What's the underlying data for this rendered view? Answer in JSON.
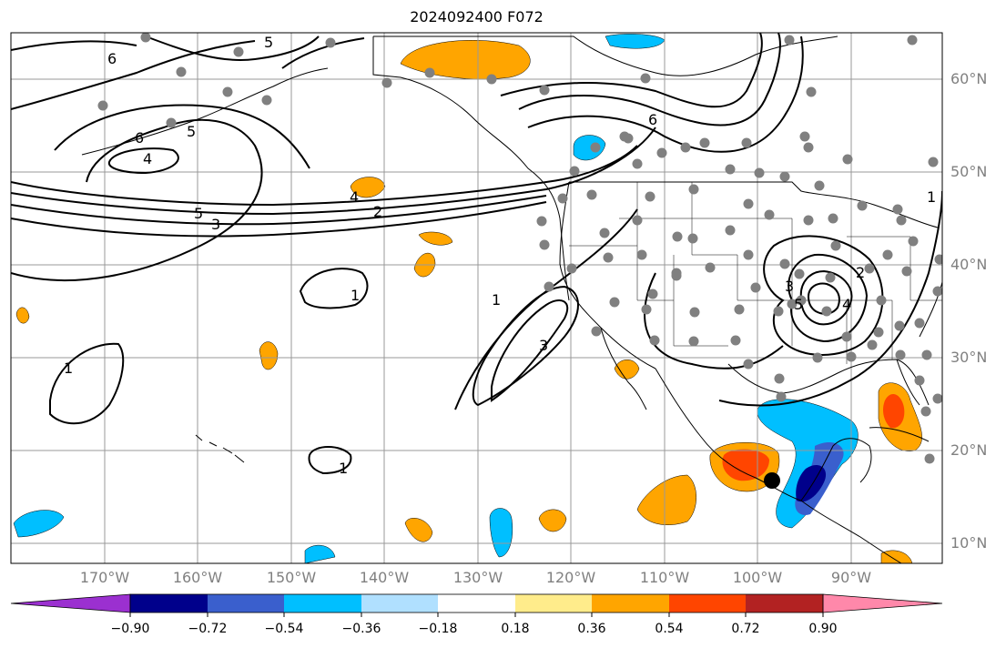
{
  "title": "2024092400 F072",
  "longitude_labels": [
    "170°W",
    "160°W",
    "150°W",
    "140°W",
    "130°W",
    "120°W",
    "110°W",
    "100°W",
    "90°W"
  ],
  "latitude_labels": [
    "60°N",
    "50°N",
    "40°N",
    "30°N",
    "20°N",
    "10°N"
  ],
  "contour_labels": [
    "6",
    "5",
    "5",
    "4",
    "6",
    "4",
    "2",
    "5",
    "3",
    "1",
    "1",
    "1",
    "3",
    "1",
    "2",
    "3",
    "5",
    "4",
    "6",
    "1"
  ],
  "colorbar": {
    "tick_labels": [
      "−0.90",
      "−0.72",
      "−0.54",
      "−0.36",
      "−0.18",
      "0.18",
      "0.36",
      "0.54",
      "0.72",
      "0.90"
    ],
    "colors": [
      "#9b30d0",
      "#00008b",
      "#3a5fcd",
      "#00bfff",
      "#b0e0ff",
      "#ffffff",
      "#ffec8b",
      "#ffa500",
      "#ff4500",
      "#b22222",
      "#ff88aa"
    ]
  },
  "marker_color": "#808080"
}
